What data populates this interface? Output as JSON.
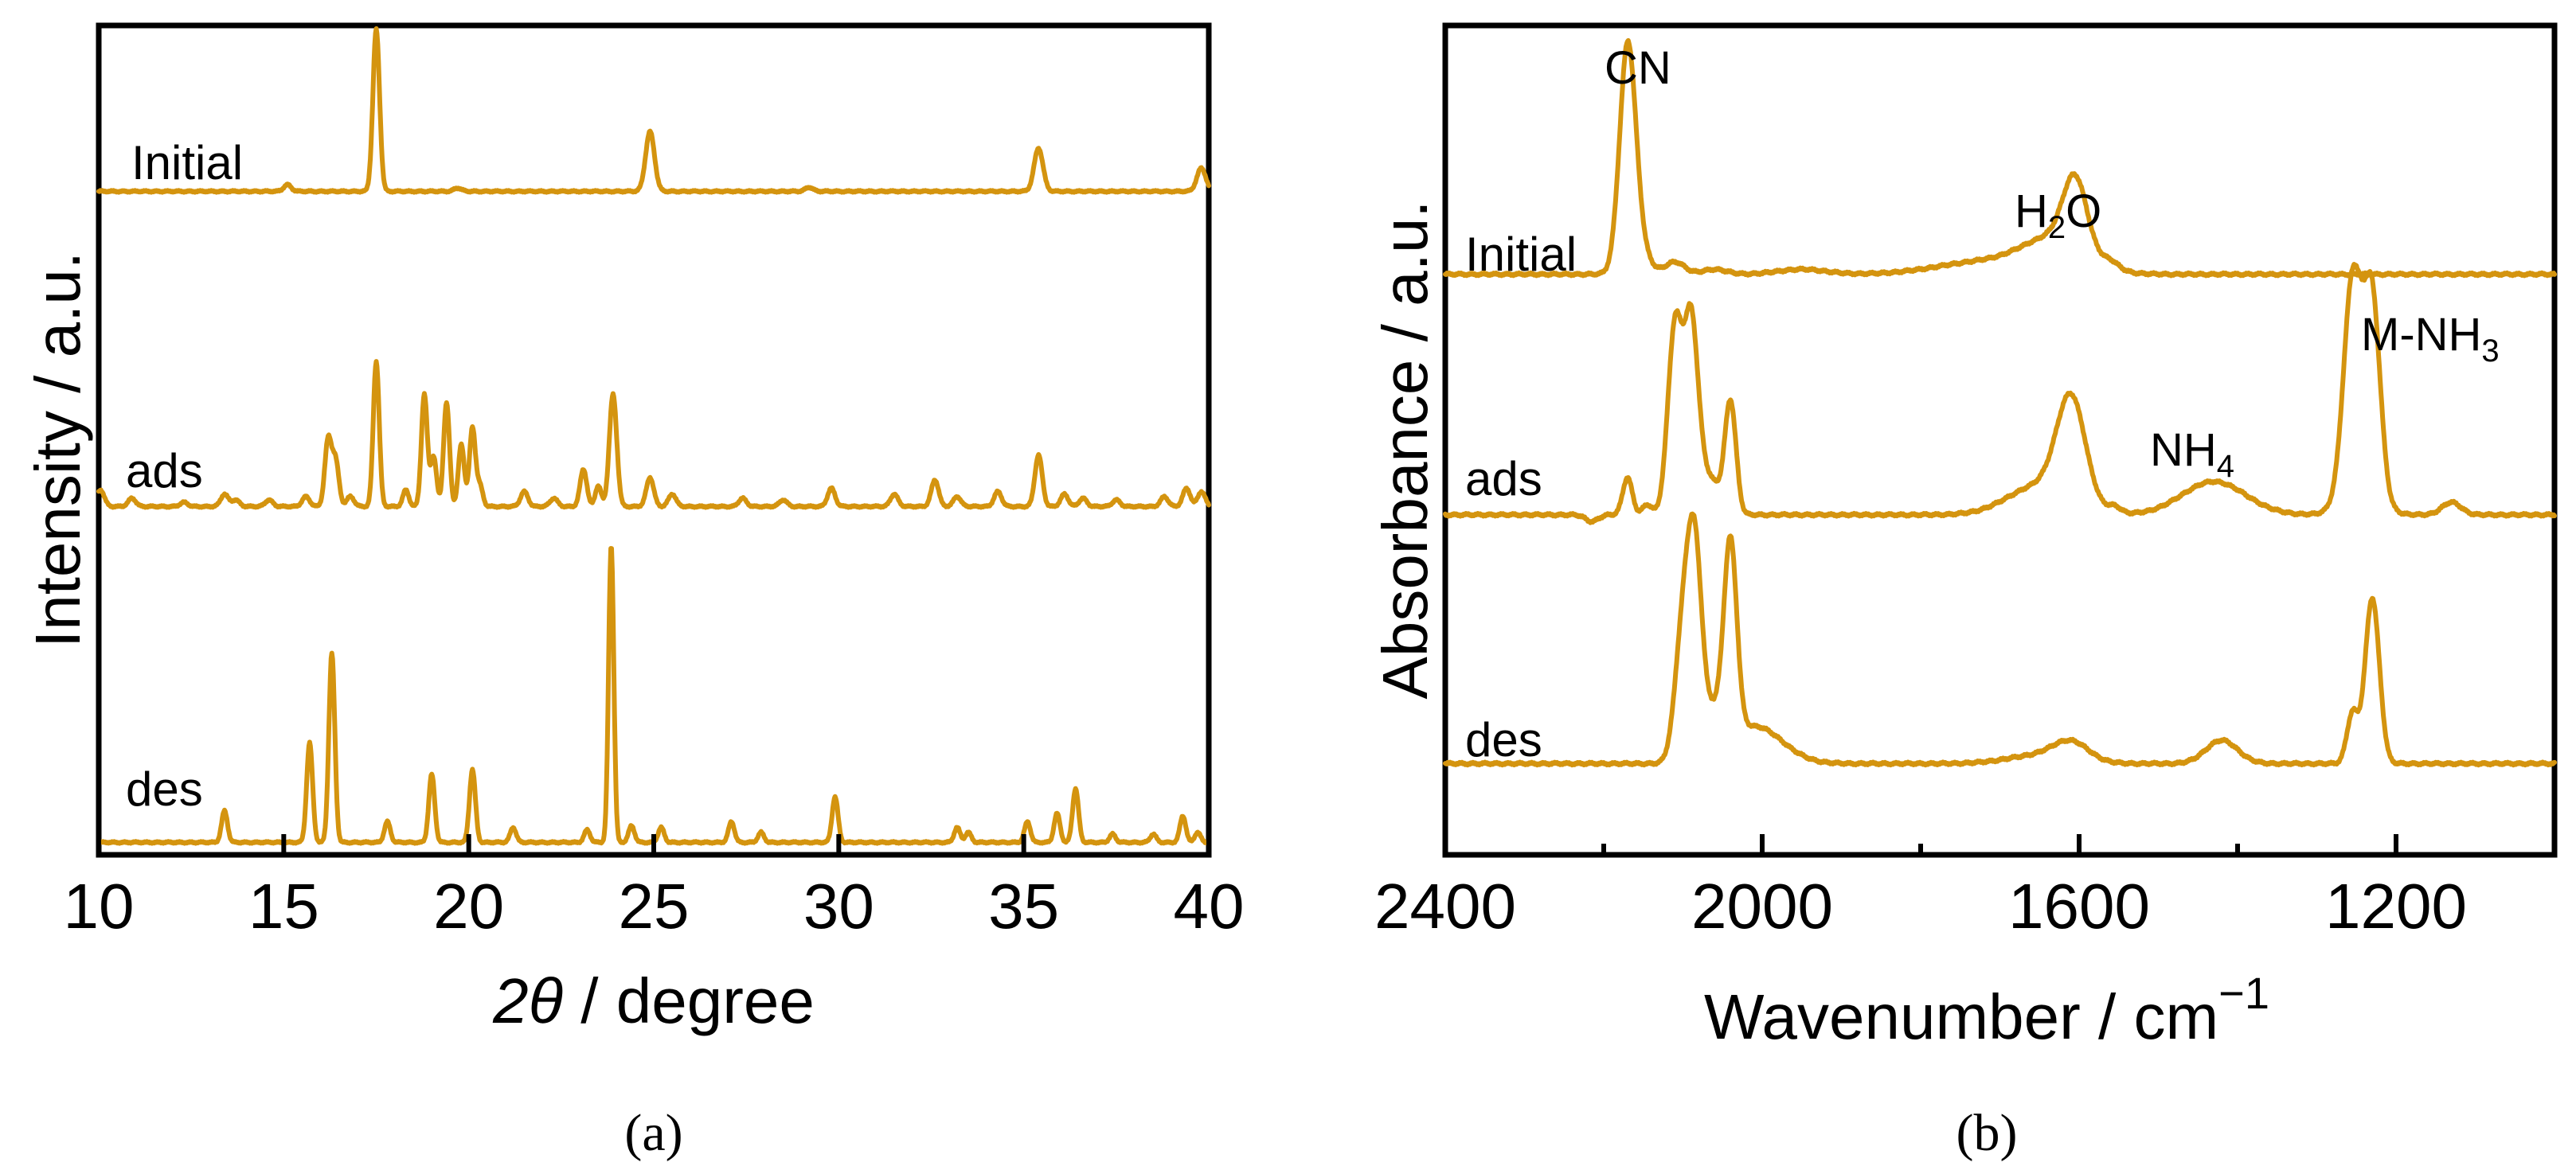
{
  "figure": {
    "accent_color": "#D4940F",
    "caption_a": "(a)",
    "caption_b": "(b)"
  },
  "chart_data": [
    {
      "id": "a",
      "type": "line",
      "title": "",
      "xlabel_prefix": "2",
      "xlabel_symbol": "θ",
      "xlabel_suffix": " / degree",
      "ylabel": "Intensity / a.u.",
      "xlim": [
        10,
        40
      ],
      "xticks": [
        10,
        15,
        20,
        25,
        30,
        35,
        40
      ],
      "xtick_labels": [
        "10",
        "15",
        "20",
        "25",
        "30",
        "35",
        "40"
      ],
      "ylim": [
        0,
        10
      ],
      "series": [
        {
          "name": "Initial",
          "offset": 8.0,
          "peaks": [
            [
              15.1,
              0.08,
              0.1
            ],
            [
              17.5,
              1.95,
              0.09
            ],
            [
              19.7,
              0.04,
              0.1
            ],
            [
              24.9,
              0.72,
              0.12
            ],
            [
              29.2,
              0.05,
              0.1
            ],
            [
              35.4,
              0.52,
              0.12
            ],
            [
              39.8,
              0.28,
              0.12
            ]
          ]
        },
        {
          "name": "ads",
          "offset": 4.2,
          "peaks": [
            [
              10.05,
              0.2,
              0.1
            ],
            [
              10.9,
              0.1,
              0.1
            ],
            [
              12.3,
              0.05,
              0.1
            ],
            [
              13.4,
              0.15,
              0.1
            ],
            [
              13.7,
              0.08,
              0.1
            ],
            [
              14.6,
              0.08,
              0.1
            ],
            [
              15.6,
              0.12,
              0.1
            ],
            [
              16.2,
              0.8,
              0.09
            ],
            [
              16.4,
              0.55,
              0.09
            ],
            [
              16.8,
              0.12,
              0.1
            ],
            [
              17.5,
              1.75,
              0.08
            ],
            [
              18.3,
              0.2,
              0.08
            ],
            [
              18.8,
              1.35,
              0.08
            ],
            [
              19.05,
              0.6,
              0.08
            ],
            [
              19.4,
              1.25,
              0.08
            ],
            [
              19.8,
              0.75,
              0.08
            ],
            [
              20.1,
              0.95,
              0.08
            ],
            [
              20.3,
              0.25,
              0.08
            ],
            [
              21.5,
              0.18,
              0.1
            ],
            [
              22.3,
              0.1,
              0.1
            ],
            [
              23.1,
              0.45,
              0.09
            ],
            [
              23.5,
              0.25,
              0.08
            ],
            [
              23.9,
              1.35,
              0.1
            ],
            [
              24.9,
              0.35,
              0.1
            ],
            [
              25.5,
              0.15,
              0.1
            ],
            [
              27.4,
              0.1,
              0.1
            ],
            [
              28.5,
              0.08,
              0.1
            ],
            [
              29.8,
              0.22,
              0.1
            ],
            [
              31.5,
              0.15,
              0.1
            ],
            [
              32.6,
              0.32,
              0.1
            ],
            [
              33.2,
              0.12,
              0.1
            ],
            [
              34.3,
              0.18,
              0.1
            ],
            [
              35.4,
              0.62,
              0.1
            ],
            [
              36.1,
              0.15,
              0.1
            ],
            [
              36.6,
              0.1,
              0.1
            ],
            [
              37.5,
              0.08,
              0.1
            ],
            [
              38.8,
              0.12,
              0.1
            ],
            [
              39.4,
              0.22,
              0.1
            ],
            [
              39.8,
              0.18,
              0.1
            ]
          ]
        },
        {
          "name": "des",
          "offset": 0.15,
          "peaks": [
            [
              13.4,
              0.38,
              0.08
            ],
            [
              15.7,
              1.2,
              0.08
            ],
            [
              16.3,
              2.28,
              0.08
            ],
            [
              17.8,
              0.25,
              0.08
            ],
            [
              19.0,
              0.82,
              0.08
            ],
            [
              20.1,
              0.88,
              0.08
            ],
            [
              21.2,
              0.18,
              0.08
            ],
            [
              23.2,
              0.15,
              0.08
            ],
            [
              23.85,
              3.58,
              0.07
            ],
            [
              24.4,
              0.2,
              0.08
            ],
            [
              25.2,
              0.18,
              0.08
            ],
            [
              27.1,
              0.25,
              0.08
            ],
            [
              27.9,
              0.12,
              0.08
            ],
            [
              29.9,
              0.55,
              0.08
            ],
            [
              33.2,
              0.18,
              0.08
            ],
            [
              33.5,
              0.12,
              0.08
            ],
            [
              35.1,
              0.25,
              0.08
            ],
            [
              35.9,
              0.35,
              0.08
            ],
            [
              36.4,
              0.65,
              0.08
            ],
            [
              37.4,
              0.1,
              0.08
            ],
            [
              38.5,
              0.1,
              0.08
            ],
            [
              39.3,
              0.32,
              0.08
            ],
            [
              39.7,
              0.12,
              0.08
            ]
          ]
        }
      ]
    },
    {
      "id": "b",
      "type": "line",
      "title": "",
      "xlabel": "Wavenumber / cm",
      "xlabel_sup": "−1",
      "ylabel": "Absorbance / a.u.",
      "xlim": [
        2400,
        1000
      ],
      "xticks": [
        2400,
        2000,
        1600,
        1200
      ],
      "xtick_labels": [
        "2400",
        "2000",
        "1600",
        "1200"
      ],
      "xminor": [
        2200,
        1800,
        1400
      ],
      "ylim": [
        0,
        10
      ],
      "annotations": [
        {
          "text": "CN",
          "x": 2170,
          "y": 9.45
        },
        {
          "text": "H",
          "sub": "2",
          "tail": "O",
          "x": 1600,
          "y": 7.95
        },
        {
          "text": "NH",
          "sub": "4",
          "tail": "",
          "x": 1430,
          "y": 4.6
        },
        {
          "text": "M-NH",
          "sub": "3",
          "tail": "",
          "x": 1110,
          "y": 6.75
        }
      ],
      "series": [
        {
          "name": "Initial",
          "offset": 7.0,
          "peaks": [
            [
              2170,
              2.5,
              10
            ],
            [
              2160,
              0.4,
              14
            ],
            [
              2110,
              0.15,
              12
            ],
            [
              2060,
              0.06,
              15
            ],
            [
              1950,
              0.06,
              30
            ],
            [
              1605,
              0.85,
              15
            ],
            [
              1630,
              0.4,
              40
            ],
            [
              1720,
              0.15,
              60
            ],
            [
              1560,
              0.08,
              10
            ]
          ]
        },
        {
          "name": "ads",
          "offset": 4.1,
          "peaks": [
            [
              2215,
              -0.08,
              8
            ],
            [
              2170,
              0.45,
              6
            ],
            [
              2145,
              0.12,
              6
            ],
            [
              2110,
              2.25,
              9
            ],
            [
              2090,
              1.6,
              8
            ],
            [
              2085,
              0.8,
              12
            ],
            [
              2040,
              1.35,
              7
            ],
            [
              2060,
              0.3,
              10
            ],
            [
              1610,
              1.25,
              18
            ],
            [
              1650,
              0.35,
              40
            ],
            [
              1555,
              0.08,
              8
            ],
            [
              1430,
              0.4,
              40
            ],
            [
              1255,
              2.35,
              11
            ],
            [
              1230,
              2.2,
              10
            ],
            [
              1245,
              0.6,
              20
            ],
            [
              1130,
              0.15,
              12
            ]
          ]
        },
        {
          "name": "des",
          "offset": 1.1,
          "peaks": [
            [
              2100,
              1.55,
              10
            ],
            [
              2085,
              2.28,
              9
            ],
            [
              2040,
              2.25,
              8
            ],
            [
              2060,
              0.5,
              14
            ],
            [
              2010,
              0.45,
              35
            ],
            [
              1610,
              0.22,
              22
            ],
            [
              1650,
              0.1,
              40
            ],
            [
              1420,
              0.28,
              20
            ],
            [
              1255,
              0.6,
              7
            ],
            [
              1230,
              2.0,
              9
            ]
          ]
        }
      ]
    }
  ]
}
